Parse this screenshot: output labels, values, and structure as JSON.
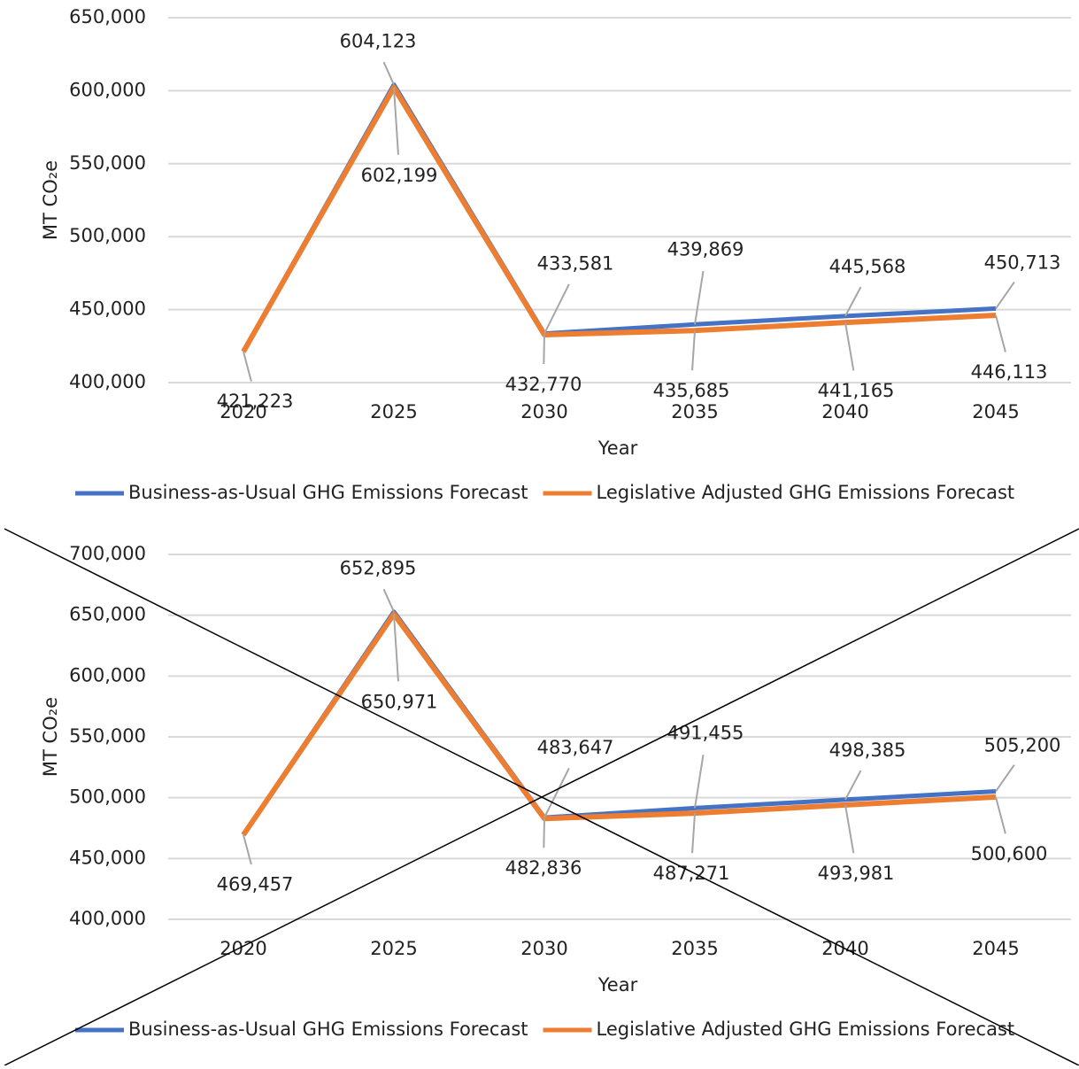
{
  "chart_data": [
    {
      "type": "line",
      "categories": [
        "2020",
        "2025",
        "2030",
        "2035",
        "2040",
        "2045"
      ],
      "series": [
        {
          "name": "Business-as-Usual GHG Emissions Forecast",
          "color": "#4472c4",
          "values": [
            421223,
            604123,
            433581,
            439869,
            445568,
            450713
          ],
          "value_labels": [
            null,
            "604,123",
            "433,581",
            "439,869",
            "445,568",
            "450,713"
          ]
        },
        {
          "name": "Legislative Adjusted GHG Emissions Forecast",
          "color": "#ed7d31",
          "values": [
            421223,
            602199,
            432770,
            435685,
            441165,
            446113
          ],
          "value_labels": [
            "421,223",
            "602,199",
            "432,770",
            "435,685",
            "441,165",
            "446,113"
          ]
        }
      ],
      "ylim": [
        400000,
        650000
      ],
      "yticks": [
        {
          "value": 400000,
          "label": "400,000"
        },
        {
          "value": 450000,
          "label": "450,000"
        },
        {
          "value": 500000,
          "label": "500,000"
        },
        {
          "value": 550000,
          "label": "550,000"
        },
        {
          "value": 600000,
          "label": "600,000"
        },
        {
          "value": 650000,
          "label": "650,000"
        }
      ],
      "y_label": "MT CO₂e",
      "x_label": "Year",
      "grid": true,
      "legend": "bottom"
    },
    {
      "type": "line",
      "categories": [
        "2020",
        "2025",
        "2030",
        "2035",
        "2040",
        "2045"
      ],
      "series": [
        {
          "name": "Business-as-Usual GHG Emissions Forecast",
          "color": "#4472c4",
          "values": [
            469457,
            652895,
            483647,
            491455,
            498385,
            505200
          ],
          "value_labels": [
            null,
            "652,895",
            "483,647",
            "491,455",
            "498,385",
            "505,200"
          ]
        },
        {
          "name": "Legislative Adjusted GHG Emissions Forecast",
          "color": "#ed7d31",
          "values": [
            469457,
            650971,
            482836,
            487271,
            493981,
            500600
          ],
          "value_labels": [
            "469,457",
            "650,971",
            "482,836",
            "487,271",
            "493,981",
            "500,600"
          ]
        }
      ],
      "ylim": [
        400000,
        700000
      ],
      "yticks": [
        {
          "value": 400000,
          "label": "400,000"
        },
        {
          "value": 450000,
          "label": "450,000"
        },
        {
          "value": 500000,
          "label": "500,000"
        },
        {
          "value": 550000,
          "label": "550,000"
        },
        {
          "value": 600000,
          "label": "600,000"
        },
        {
          "value": 650000,
          "label": "650,000"
        },
        {
          "value": 700000,
          "label": "700,000"
        }
      ],
      "y_label": "MT CO₂e",
      "x_label": "Year",
      "grid": true,
      "legend": "bottom"
    }
  ]
}
